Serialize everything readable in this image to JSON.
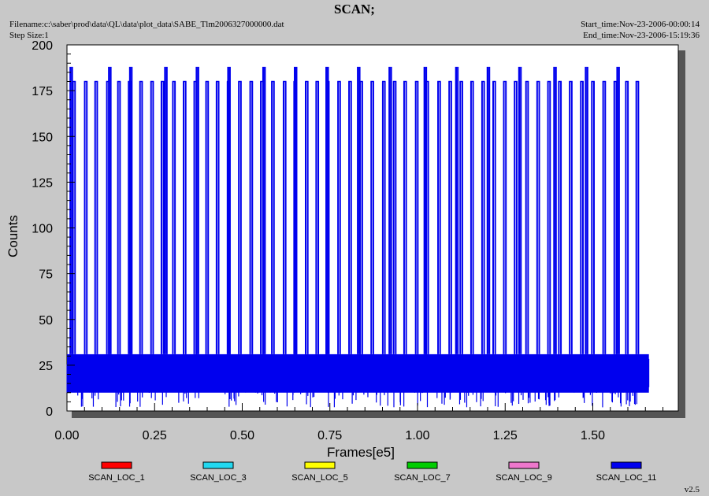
{
  "header": {
    "title": "SCAN;",
    "filename": "Filename:c:\\saber\\prod\\data\\QL\\data\\plot_data\\SABE_Tlm2006327000000.dat",
    "step_size": "Step Size:1",
    "start_time": "Start_time:Nov-23-2006-00:00:14",
    "end_time": "End_time:Nov-23-2006-15:19:36"
  },
  "footer": {
    "version": "v2.5"
  },
  "chart_data": {
    "type": "line",
    "title": "SCAN;",
    "xlabel": "Frames[e5]",
    "ylabel": "Counts",
    "xlim": [
      0,
      1.75
    ],
    "ylim": [
      0,
      200
    ],
    "xticks": [
      "0.00",
      "0.25",
      "0.50",
      "0.75",
      "1.00",
      "1.25",
      "1.50"
    ],
    "yticks": [
      "0",
      "25",
      "50",
      "75",
      "100",
      "125",
      "150",
      "175",
      "200"
    ],
    "grid": false,
    "legend_position": "bottom",
    "series": [
      {
        "name": "SCAN_LOC_1",
        "color": "#ff0000",
        "values": []
      },
      {
        "name": "SCAN_LOC_3",
        "color": "#22d8f0",
        "values": []
      },
      {
        "name": "SCAN_LOC_5",
        "color": "#ffff00",
        "values": []
      },
      {
        "name": "SCAN_LOC_7",
        "color": "#00cc00",
        "values": []
      },
      {
        "name": "SCAN_LOC_9",
        "color": "#ee77cc",
        "values": []
      },
      {
        "name": "SCAN_LOC_11",
        "color": "#0000ee",
        "x_range": [
          0.0,
          1.66
        ],
        "baseline_range": [
          10,
          31
        ],
        "repeating_peak": 180,
        "major_peak": 188,
        "major_peak_x": [
          0.01,
          0.12,
          0.18,
          0.28,
          0.37,
          0.46,
          0.56,
          0.65,
          0.74,
          0.83,
          0.92,
          1.02,
          1.11,
          1.2,
          1.29,
          1.39,
          1.48,
          1.57
        ],
        "points_note": "dense scan signal"
      }
    ]
  }
}
